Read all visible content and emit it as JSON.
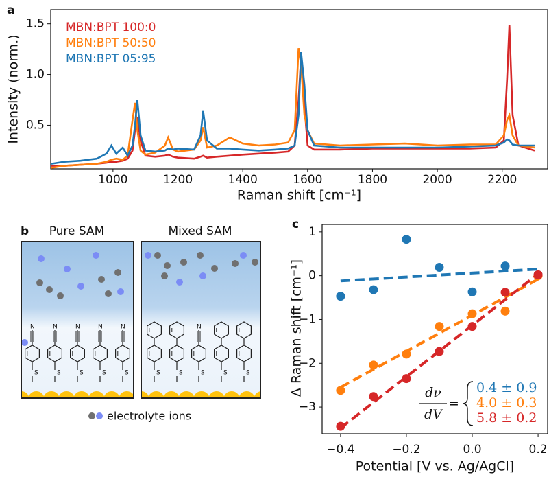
{
  "chart_data": [
    {
      "type": "line",
      "panel_label": "a",
      "x_label": "Raman shift [cm⁻¹]",
      "y_label": "Intensity (norm.)",
      "x": [
        810,
        850,
        900,
        950,
        980,
        995,
        1010,
        1030,
        1045,
        1060,
        1068,
        1075,
        1085,
        1100,
        1130,
        1160,
        1170,
        1185,
        1200,
        1250,
        1270,
        1278,
        1290,
        1320,
        1360,
        1400,
        1450,
        1500,
        1540,
        1560,
        1572,
        1580,
        1590,
        1600,
        1620,
        1700,
        1800,
        1900,
        2000,
        2100,
        2180,
        2205,
        2215,
        2222,
        2232,
        2250,
        2300
      ],
      "series": [
        {
          "name": "MBN:BPT 100:0",
          "color": "#d62728",
          "values": [
            0.1,
            0.1,
            0.11,
            0.12,
            0.13,
            0.14,
            0.14,
            0.15,
            0.17,
            0.25,
            0.45,
            0.58,
            0.35,
            0.2,
            0.19,
            0.2,
            0.21,
            0.19,
            0.18,
            0.17,
            0.19,
            0.2,
            0.18,
            0.19,
            0.2,
            0.21,
            0.22,
            0.23,
            0.24,
            0.3,
            0.75,
            1.18,
            0.7,
            0.3,
            0.26,
            0.26,
            0.27,
            0.27,
            0.27,
            0.27,
            0.28,
            0.35,
            0.95,
            1.49,
            0.6,
            0.3,
            0.25
          ]
        },
        {
          "name": "MBN:BPT 50:50",
          "color": "#ff7f0e",
          "values": [
            0.08,
            0.1,
            0.11,
            0.12,
            0.14,
            0.16,
            0.17,
            0.16,
            0.2,
            0.55,
            0.72,
            0.45,
            0.25,
            0.21,
            0.23,
            0.3,
            0.38,
            0.26,
            0.24,
            0.26,
            0.35,
            0.48,
            0.28,
            0.3,
            0.38,
            0.32,
            0.3,
            0.31,
            0.33,
            0.45,
            1.26,
            1.1,
            0.6,
            0.45,
            0.32,
            0.3,
            0.31,
            0.32,
            0.3,
            0.31,
            0.31,
            0.4,
            0.55,
            0.6,
            0.4,
            0.3,
            0.28
          ]
        },
        {
          "name": "MBN:BPT 05:95",
          "color": "#1f77b4",
          "values": [
            0.12,
            0.14,
            0.15,
            0.17,
            0.22,
            0.3,
            0.22,
            0.28,
            0.2,
            0.3,
            0.5,
            0.75,
            0.4,
            0.25,
            0.24,
            0.25,
            0.27,
            0.26,
            0.27,
            0.26,
            0.4,
            0.64,
            0.35,
            0.27,
            0.27,
            0.26,
            0.25,
            0.26,
            0.27,
            0.3,
            0.6,
            1.22,
            0.9,
            0.45,
            0.3,
            0.28,
            0.28,
            0.28,
            0.28,
            0.29,
            0.3,
            0.33,
            0.36,
            0.35,
            0.31,
            0.3,
            0.3
          ]
        }
      ],
      "xlim": [
        808,
        2340
      ],
      "ylim": [
        0.07,
        1.64
      ],
      "xticks": [
        1000,
        1200,
        1400,
        1600,
        1800,
        2000,
        2200
      ],
      "yticks": [
        0.5,
        {
          "value": 1,
          "label": "1.0"
        },
        1.5
      ],
      "legend": "upper left"
    },
    {
      "type": "scatter",
      "panel_label": "c",
      "x_label": "Potential [V vs. Ag/AgCl]",
      "y_label": "Δ Raman shift [cm⁻¹]",
      "x": [
        -0.4,
        -0.3,
        -0.2,
        -0.1,
        0,
        0.1,
        0.2
      ],
      "fit_x": [
        -0.4,
        0.2
      ],
      "series": [
        {
          "color": "#1f77b4",
          "values": [
            -0.47,
            -0.32,
            0.83,
            0.19,
            -0.37,
            0.22,
            0.02
          ],
          "fit_values": [
            -0.12,
            0.15
          ],
          "slope_label": "0.4 ± 0.9"
        },
        {
          "color": "#ff7f0e",
          "values": [
            -2.62,
            -2.04,
            -1.79,
            -1.16,
            -0.87,
            -0.81,
            0.0
          ],
          "fit_values": [
            -2.55,
            -0.08
          ],
          "slope_label": "4.0 ± 0.3"
        },
        {
          "color": "#d62728",
          "values": [
            -3.44,
            -2.76,
            -2.35,
            -1.73,
            -1.16,
            -0.38,
            0.02
          ],
          "fit_values": [
            -3.48,
            0.04
          ],
          "slope_label": "5.8 ± 0.2"
        }
      ],
      "annotation": {
        "numerator": "dν",
        "denominator": "dV",
        "equals": "="
      },
      "xlim": [
        -0.456,
        0.229
      ],
      "ylim": [
        -3.61,
        1.17
      ],
      "xticks": [
        {
          "value": -0.4,
          "label": "−0.4"
        },
        {
          "value": -0.2,
          "label": "−0.2"
        },
        {
          "value": 0,
          "label": "0.0"
        },
        0.2
      ],
      "yticks": [
        {
          "value": -3,
          "label": "−3"
        },
        {
          "value": -2,
          "label": "−2"
        },
        {
          "value": -1,
          "label": "−1"
        },
        0,
        1
      ]
    }
  ],
  "diagram": {
    "panel_label": "b",
    "left_title": "Pure SAM",
    "right_title": "Mixed SAM",
    "legend": "electrolyte ions"
  }
}
